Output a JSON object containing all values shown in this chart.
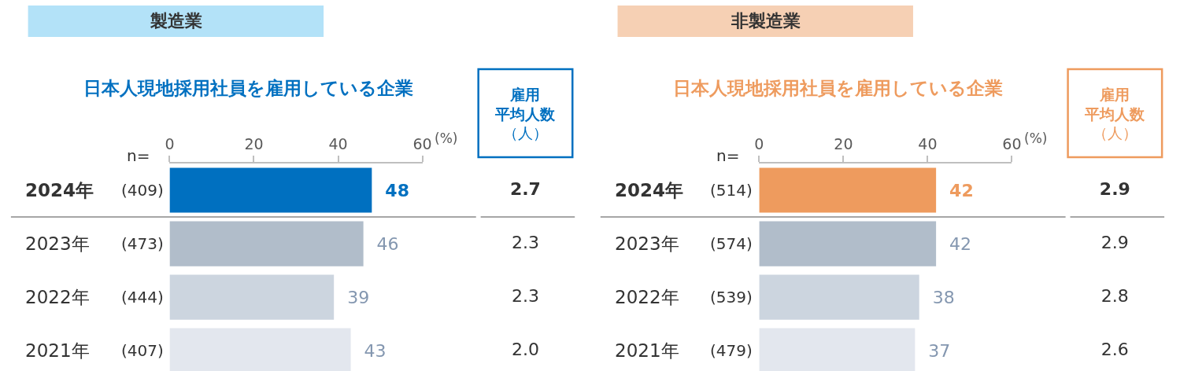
{
  "chart_data": [
    {
      "type": "bar",
      "orientation": "horizontal",
      "title": "製造業",
      "subtitle": "日本人現地採用社員を雇用している企業",
      "xlabel": "(%)",
      "categories": [
        "2024年",
        "2023年",
        "2022年",
        "2021年"
      ],
      "values": [
        48,
        46,
        39,
        43
      ],
      "colors": [
        "#0070c0",
        "#b1bdca",
        "#ccd5df",
        "#e3e7ee"
      ],
      "xlim": [
        0,
        60
      ],
      "xticks": [
        0,
        20,
        40,
        60
      ],
      "data_labels": true,
      "annotations": [
        "n=",
        "(409)",
        "(473)",
        "(444)",
        "(407)"
      ]
    },
    {
      "type": "other",
      "title": "雇用平均人数",
      "ylabel": "（人）",
      "values": [
        2.7,
        2.3,
        2.3,
        2.0
      ],
      "value_labels": [
        "2.7",
        "2.3",
        "2.3",
        "2.0"
      ]
    },
    {
      "type": "bar",
      "orientation": "horizontal",
      "title": "非製造業",
      "subtitle": "日本人現地採用社員を雇用している企業",
      "xlabel": "(%)",
      "categories": [
        "2024年",
        "2023年",
        "2022年",
        "2021年"
      ],
      "values": [
        42,
        42,
        38,
        37
      ],
      "colors": [
        "#ee9b5e",
        "#b1bdca",
        "#ccd5df",
        "#e3e7ee"
      ],
      "xlim": [
        0,
        60
      ],
      "xticks": [
        0,
        20,
        40,
        60
      ],
      "data_labels": true,
      "annotations": [
        "n=",
        "(514)",
        "(574)",
        "(539)",
        "(479)"
      ]
    },
    {
      "type": "other",
      "title": "雇用平均人数",
      "ylabel": "（人）",
      "values": [
        2.9,
        2.9,
        2.8,
        2.6
      ],
      "value_labels": [
        "2.9",
        "2.9",
        "2.8",
        "2.6"
      ]
    }
  ]
}
